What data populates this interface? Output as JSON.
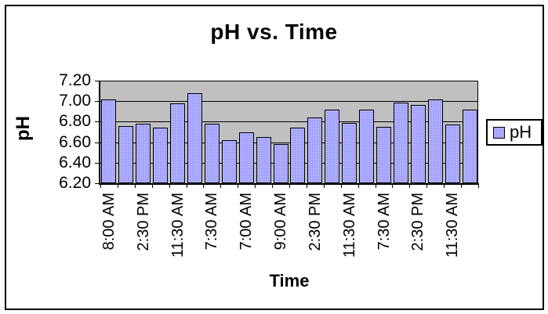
{
  "chart_data": {
    "type": "bar",
    "title": "pH vs. Time",
    "xlabel": "Time",
    "ylabel": "pH",
    "ylim": [
      6.2,
      7.2
    ],
    "grid": true,
    "yticks": [
      "7.20",
      "7.00",
      "6.80",
      "6.60",
      "6.40",
      "6.20"
    ],
    "categories": [
      "8:00 AM",
      "",
      "2:30 PM",
      "",
      "11:30 AM",
      "",
      "7:30 AM",
      "",
      "7:00 AM",
      "",
      "9:00 AM",
      "",
      "2:30 PM",
      "",
      "11:30 AM",
      "",
      "7:30 AM",
      "",
      "2:30 PM",
      "",
      "11:30 AM",
      ""
    ],
    "series": [
      {
        "name": "pH",
        "values": [
          7.02,
          6.76,
          6.78,
          6.74,
          6.98,
          7.08,
          6.78,
          6.62,
          6.7,
          6.65,
          6.58,
          6.74,
          6.84,
          6.92,
          6.79,
          6.92,
          6.75,
          6.99,
          6.96,
          7.02,
          6.77,
          6.92
        ]
      }
    ],
    "legend": {
      "position": "right",
      "entries": [
        {
          "label": "pH",
          "swatch_color": "#9999FF"
        }
      ]
    },
    "colors": {
      "bar_fill": "#9999FF",
      "bar_dot": "#C2C2FF",
      "bar_border": "#000000",
      "plot_bg": "#C0C0C0",
      "grid": "#000000",
      "text": "#000000",
      "chart_bg": "#FFFFFF",
      "frame_border": "#000000"
    }
  }
}
